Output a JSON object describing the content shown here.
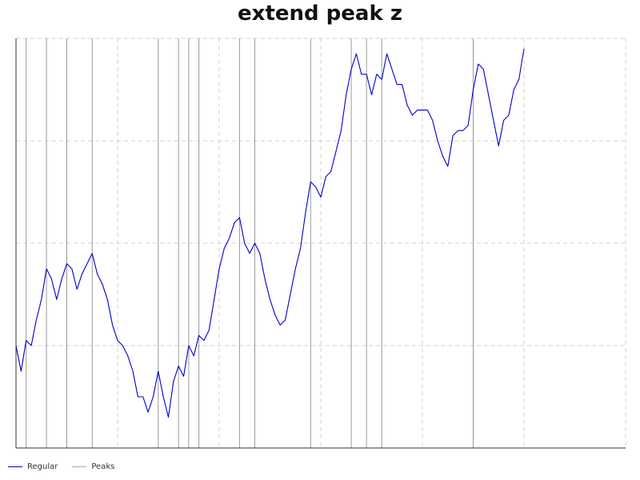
{
  "chart_data": {
    "type": "line",
    "title": "extend peak z",
    "xlabel": "",
    "ylabel": "",
    "xlim": [
      0,
      120
    ],
    "ylim": [
      0,
      80
    ],
    "grid": {
      "x": true,
      "y": true,
      "style": "dashed"
    },
    "legend_placement": "bottom-left",
    "series": [
      {
        "name": "Regular",
        "color": "#0000cc",
        "values": [
          20,
          15,
          21,
          20,
          25,
          29,
          35,
          33,
          29,
          33,
          36,
          35,
          31,
          34,
          36,
          38,
          34,
          32,
          29,
          24,
          21,
          20,
          18,
          15,
          10,
          10,
          7,
          10,
          15,
          10,
          6,
          13,
          16,
          14,
          20,
          18,
          22,
          21,
          23,
          29,
          35,
          39,
          41,
          44,
          45,
          40,
          38,
          40,
          38,
          33,
          29,
          26,
          24,
          25,
          30,
          35,
          39,
          46,
          52,
          51,
          49,
          53,
          54,
          58,
          62,
          69,
          74,
          77,
          73,
          73,
          69,
          73,
          72,
          77,
          74,
          71,
          71,
          67,
          65,
          66,
          66,
          66,
          64,
          60,
          57,
          55,
          61,
          62,
          62,
          63,
          70,
          75,
          74,
          69,
          64,
          59,
          64,
          65,
          70,
          72,
          78
        ]
      }
    ],
    "peaks": {
      "name": "Peaks",
      "color": "#999999",
      "x": [
        0,
        2,
        6,
        10,
        15,
        28,
        32,
        34,
        36,
        44,
        47,
        58,
        66,
        69,
        72,
        90
      ]
    }
  }
}
